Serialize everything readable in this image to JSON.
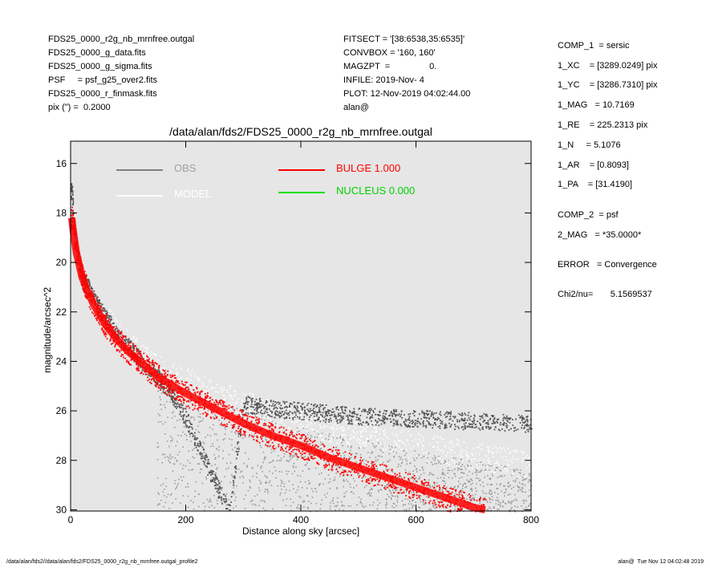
{
  "header_left": [
    "FDS25_0000_r2g_nb_mrnfree.outgal",
    "FDS25_0000_g_data.fits",
    "FDS25_0000_g_sigma.fits",
    "PSF     = psf_g25_over2.fits",
    "FDS25_0000_r_finmask.fits",
    "pix (\") =  0.2000"
  ],
  "header_mid": [
    "FITSECT = '[38:6538,35:6535]'",
    "CONVBOX = '160, 160'",
    "MAGZPT  =                0.",
    "INFILE: 2019-Nov- 4",
    "PLOT: 12-Nov-2019 04:02:44.00",
    "alan@"
  ],
  "params": [
    "COMP_1  = sersic",
    "1_XC    = [3289.0249] pix",
    "1_YC    = [3286.7310] pix",
    "1_MAG   = 10.7169",
    "1_RE    = 225.2313 pix",
    "1_N     = 5.1076",
    "1_AR    = [0.8093]",
    "1_PA    = [31.4190]",
    "COMP_2  = psf",
    "2_MAG   = *35.0000*",
    "ERROR   = Convergence",
    "Chi2/nu=       5.1569537"
  ],
  "footer_left": "/data/alan/fds2//data/alan/fds2/FDS25_0000_r2g_nb_mrnfree.outgal_profile2",
  "footer_right": "alan@  Tue Nov 12 04:02:48 2019",
  "chart_data": {
    "type": "scatter",
    "title": "/data/alan/fds2/FDS25_0000_r2g_nb_mrnfree.outgal",
    "xlabel": "Distance along sky [arcsec]",
    "ylabel": "magnitude/arcsec^2",
    "xlim": [
      0,
      800
    ],
    "ylim": [
      30.05,
      15.1
    ],
    "y_inverted": true,
    "x_ticks": [
      0,
      200,
      400,
      600,
      800
    ],
    "y_ticks": [
      16,
      18,
      20,
      22,
      24,
      26,
      28,
      30
    ],
    "background_color": "#e6e6e6",
    "legend": [
      {
        "label": "OBS",
        "color": "#808080",
        "text_color": "#a0a0a0"
      },
      {
        "label": "MODEL",
        "color": "#ffffff",
        "text_color": "#ffffff"
      },
      {
        "label": "BULGE  1.000",
        "color": "#ff0000",
        "text_color": "#ff0000"
      },
      {
        "label": "NUCLEUS  0.000",
        "color": "#00e000",
        "text_color": "#00d000"
      }
    ],
    "series": [
      {
        "name": "OBS",
        "color": "#555555",
        "x": [
          2,
          5,
          10,
          20,
          30,
          40,
          60,
          80,
          100,
          125,
          150,
          175,
          200,
          225,
          250,
          275,
          300,
          350,
          400,
          450,
          500,
          600,
          700,
          800
        ],
        "y": [
          17.1,
          18.4,
          19.4,
          20.7,
          21.0,
          21.5,
          22.2,
          22.9,
          23.4,
          24.0,
          24.6,
          25.3,
          26.3,
          27.6,
          28.9,
          30.0,
          25.7,
          25.9,
          26.0,
          26.1,
          26.2,
          26.3,
          26.4,
          26.5
        ]
      },
      {
        "name": "MODEL",
        "color": "#ffffff",
        "x": [
          2,
          5,
          10,
          20,
          30,
          40,
          60,
          80,
          100,
          150,
          200,
          250,
          300,
          350,
          400,
          450,
          500,
          600,
          700,
          800
        ],
        "y": [
          17.6,
          18.5,
          19.3,
          20.3,
          20.9,
          21.4,
          22.2,
          22.8,
          23.3,
          24.2,
          24.8,
          25.3,
          25.7,
          26.1,
          26.4,
          26.7,
          26.9,
          27.4,
          27.8,
          28.2
        ]
      },
      {
        "name": "BULGE  1.000",
        "color": "#ff0000",
        "x": [
          2,
          5,
          10,
          20,
          30,
          40,
          60,
          80,
          100,
          150,
          200,
          250,
          300,
          350,
          400,
          450,
          500,
          550,
          600,
          650,
          700,
          720
        ],
        "y": [
          18.2,
          18.8,
          19.6,
          20.6,
          21.2,
          21.7,
          22.5,
          23.1,
          23.6,
          24.6,
          25.3,
          25.9,
          26.5,
          27.0,
          27.4,
          27.9,
          28.3,
          28.7,
          29.1,
          29.5,
          29.9,
          30.0
        ]
      }
    ]
  }
}
